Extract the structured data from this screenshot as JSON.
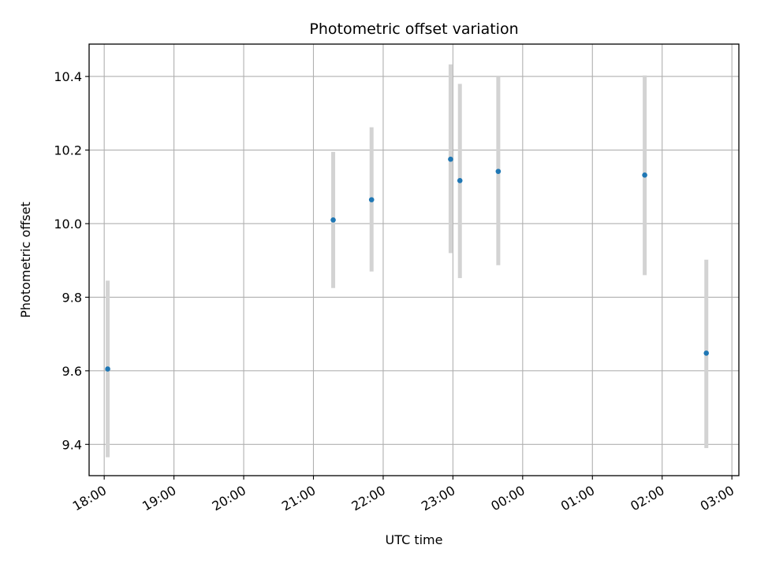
{
  "chart_data": {
    "type": "scatter",
    "title": "Photometric offset variation",
    "xlabel": "UTC time",
    "ylabel": "Photometric offset",
    "x_ticks": [
      "18:00",
      "19:00",
      "20:00",
      "21:00",
      "22:00",
      "23:00",
      "00:00",
      "01:00",
      "02:00",
      "03:00"
    ],
    "y_ticks": [
      "9.4",
      "9.6",
      "9.8",
      "10.0",
      "10.2",
      "10.4"
    ],
    "xlim": [
      "17:47",
      "03:06"
    ],
    "ylim": [
      9.315,
      10.488
    ],
    "grid": true,
    "colors": {
      "point": "#1f77b4",
      "errorbar": "#d3d3d3",
      "grid": "#b0b0b0"
    },
    "points": [
      {
        "x": "18:03",
        "y": 9.605,
        "yerr_low": 9.365,
        "yerr_high": 9.845
      },
      {
        "x": "21:17",
        "y": 10.01,
        "yerr_low": 9.825,
        "yerr_high": 10.195
      },
      {
        "x": "21:50",
        "y": 10.065,
        "yerr_low": 9.87,
        "yerr_high": 10.262
      },
      {
        "x": "22:58",
        "y": 10.175,
        "yerr_low": 9.92,
        "yerr_high": 10.433
      },
      {
        "x": "23:06",
        "y": 10.117,
        "yerr_low": 9.852,
        "yerr_high": 10.38
      },
      {
        "x": "23:39",
        "y": 10.142,
        "yerr_low": 9.887,
        "yerr_high": 10.4
      },
      {
        "x": "01:45",
        "y": 10.132,
        "yerr_low": 9.86,
        "yerr_high": 10.403
      },
      {
        "x": "02:38",
        "y": 9.648,
        "yerr_low": 9.39,
        "yerr_high": 9.902
      }
    ]
  }
}
